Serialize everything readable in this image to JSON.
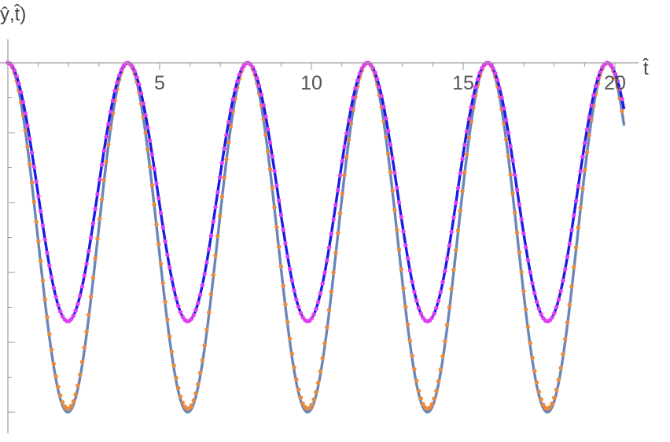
{
  "chart_data": {
    "type": "line",
    "xlabel": "t̂",
    "ylabel": "ŷ,t̂)",
    "xlim": [
      0,
      20.3
    ],
    "ylim": [
      -1,
      0
    ],
    "x_ticks": [
      5,
      10,
      15,
      20
    ],
    "grid": false,
    "legend": "none",
    "series": [
      {
        "style": "solid",
        "color": "#6a86b8",
        "period": 3.95,
        "min": -1.0,
        "x_start": 0,
        "x_end": 20.3
      },
      {
        "style": "dotted",
        "color": "#ec8a3a",
        "period": 3.95,
        "min": -0.99,
        "x_start": 0,
        "x_end": 20.3
      },
      {
        "style": "solid",
        "color": "#1a1ae6",
        "period": 3.95,
        "min": -0.74,
        "x_start": 0,
        "x_end": 20.3
      },
      {
        "style": "dotted",
        "color": "#e040f0",
        "period": 3.95,
        "min": -0.74,
        "x_start": 0,
        "x_end": 20.3
      }
    ]
  }
}
